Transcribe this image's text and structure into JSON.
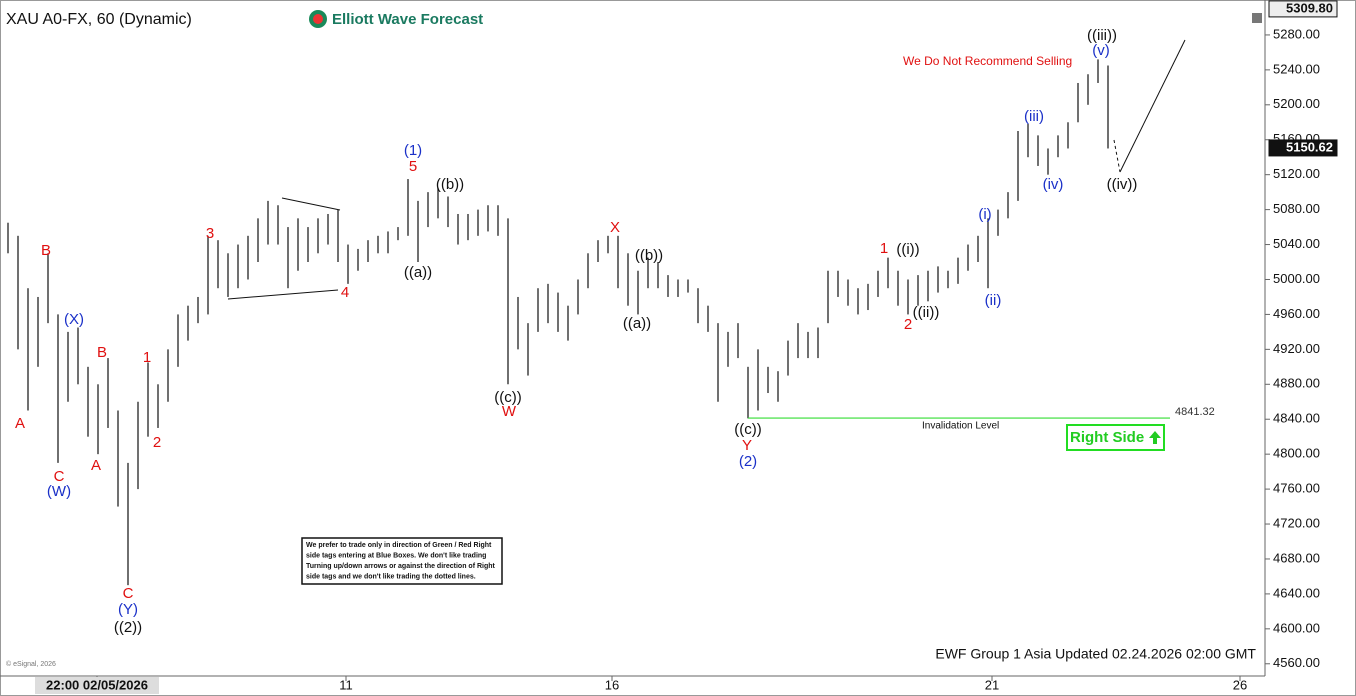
{
  "chart_data": {
    "type": "ohlc",
    "title": "XAU A0-FX, 60 (Dynamic)",
    "x": [
      0,
      1,
      2,
      3,
      4,
      5,
      6,
      7,
      8,
      9,
      10,
      11,
      12,
      13,
      14,
      15,
      16,
      17,
      18,
      19,
      20,
      21,
      22,
      23,
      24,
      25,
      26,
      27,
      28,
      29,
      30,
      31,
      32,
      33,
      34,
      35,
      36,
      37,
      38,
      39,
      40,
      41,
      42,
      43,
      44,
      45,
      46,
      47,
      48,
      49,
      50,
      51,
      52,
      53,
      54,
      55,
      56,
      57,
      58,
      59,
      60,
      61,
      62,
      63,
      64,
      65,
      66,
      67,
      68,
      69,
      70,
      71,
      72,
      73,
      74,
      75,
      76,
      77,
      78,
      79,
      80,
      81,
      82,
      83,
      84,
      85,
      86,
      87,
      88,
      89,
      90,
      91,
      92,
      93,
      94,
      95,
      96,
      97,
      98,
      99,
      100,
      101,
      102,
      103,
      104,
      105,
      106,
      107,
      108,
      109,
      110
    ],
    "high": [
      5065,
      5050,
      4990,
      4980,
      5030,
      4960,
      4940,
      4945,
      4900,
      4880,
      4910,
      4850,
      4790,
      4860,
      4905,
      4880,
      4920,
      4960,
      4970,
      4980,
      5050,
      5045,
      5030,
      5040,
      5050,
      5070,
      5090,
      5085,
      5060,
      5070,
      5060,
      5070,
      5075,
      5080,
      5040,
      5035,
      5045,
      5050,
      5055,
      5060,
      5115,
      5090,
      5100,
      5105,
      5095,
      5075,
      5075,
      5080,
      5085,
      5085,
      5070,
      4980,
      4950,
      4990,
      4995,
      4985,
      4970,
      5000,
      5030,
      5045,
      5050,
      5050,
      5030,
      5010,
      5025,
      5020,
      5005,
      5000,
      5000,
      4990,
      4970,
      4950,
      4940,
      4950,
      4900,
      4920,
      4900,
      4895,
      4930,
      4950,
      4940,
      4945,
      5010,
      5010,
      5000,
      4990,
      4995,
      5010,
      5025,
      5010,
      5000,
      5005,
      5010,
      5015,
      5010,
      5025,
      5040,
      5050,
      5070,
      5080,
      5100,
      5170,
      5178,
      5165,
      5150,
      5165,
      5180,
      5225,
      5235,
      5252,
      5245
    ],
    "low": [
      5030,
      4920,
      4850,
      4900,
      4950,
      4790,
      4860,
      4880,
      4820,
      4800,
      4830,
      4740,
      4650,
      4760,
      4820,
      4830,
      4860,
      4900,
      4930,
      4950,
      4960,
      4990,
      4980,
      4990,
      5000,
      5020,
      5040,
      5040,
      4990,
      5010,
      5020,
      5030,
      5040,
      5020,
      4995,
      5010,
      5020,
      5030,
      5030,
      5045,
      5050,
      5020,
      5060,
      5070,
      5060,
      5040,
      5045,
      5050,
      5055,
      5050,
      4880,
      4920,
      4890,
      4940,
      4950,
      4940,
      4930,
      4960,
      4990,
      5020,
      5030,
      4990,
      4970,
      4960,
      4990,
      4990,
      4980,
      4980,
      4985,
      4950,
      4940,
      4860,
      4900,
      4910,
      4841,
      4850,
      4870,
      4860,
      4890,
      4910,
      4910,
      4910,
      4950,
      4980,
      4970,
      4960,
      4965,
      4980,
      4990,
      4970,
      4960,
      4970,
      4975,
      4985,
      4990,
      4995,
      5010,
      5020,
      4990,
      5050,
      5070,
      5090,
      5140,
      5130,
      5120,
      5140,
      5150,
      5180,
      5200,
      5225,
      5150
    ],
    "color": "#222222",
    "xlim": [
      -0.8,
      125.7
    ],
    "xticks": [
      {
        "value": 8.9,
        "label": "22:00 02/05/2026"
      },
      {
        "value": 33.8,
        "label": "11"
      },
      {
        "value": 60.4,
        "label": "16"
      },
      {
        "value": 98.4,
        "label": "21"
      },
      {
        "value": 123.2,
        "label": "26"
      }
    ],
    "ylim": [
      4546,
      5320
    ],
    "yticks": [
      {
        "value": 4560,
        "label": "4560.00"
      },
      {
        "value": 4600,
        "label": "4600.00"
      },
      {
        "value": 4640,
        "label": "4640.00"
      },
      {
        "value": 4680,
        "label": "4680.00"
      },
      {
        "value": 4720,
        "label": "4720.00"
      },
      {
        "value": 4760,
        "label": "4760.00"
      },
      {
        "value": 4800,
        "label": "4800.00"
      },
      {
        "value": 4840,
        "label": "4840.00"
      },
      {
        "value": 4880,
        "label": "4880.00"
      },
      {
        "value": 4920,
        "label": "4920.00"
      },
      {
        "value": 4960,
        "label": "4960.00"
      },
      {
        "value": 5000,
        "label": "5000.00"
      },
      {
        "value": 5040,
        "label": "5040.00"
      },
      {
        "value": 5080,
        "label": "5080.00"
      },
      {
        "value": 5120,
        "label": "5120.00"
      },
      {
        "value": 5160,
        "label": "5160.00"
      },
      {
        "value": 5200,
        "label": "5200.00"
      },
      {
        "value": 5240,
        "label": "5240.00"
      },
      {
        "value": 5280,
        "label": "5280.00"
      }
    ],
    "price_markers": [
      {
        "value": 5309.8,
        "label": "5309.80"
      },
      {
        "value": 5150.62,
        "label": "5150.62"
      }
    ],
    "invalidation": {
      "value": 4841.32,
      "label": "Invalidation Level",
      "color": "#33dd33"
    },
    "annotations": [
      {
        "text": "A",
        "color": "#e01010"
      },
      {
        "text": "B",
        "color": "#e01010"
      },
      {
        "text": "(X)",
        "color": "#1a30c8"
      },
      {
        "text": "C",
        "color": "#e01010"
      },
      {
        "text": "(W)",
        "color": "#1a30c8"
      },
      {
        "text": "B",
        "color": "#e01010"
      },
      {
        "text": "A",
        "color": "#e01010"
      },
      {
        "text": "1",
        "color": "#e01010"
      },
      {
        "text": "2",
        "color": "#e01010"
      },
      {
        "text": "C",
        "color": "#e01010"
      },
      {
        "text": "(Y)",
        "color": "#1a30c8"
      },
      {
        "text": "((2))",
        "color": "#111111"
      },
      {
        "text": "3",
        "color": "#e01010"
      },
      {
        "text": "4",
        "color": "#e01010"
      },
      {
        "text": "5",
        "color": "#e01010"
      },
      {
        "text": "(1)",
        "color": "#1a30c8"
      },
      {
        "text": "((a))",
        "color": "#111111"
      },
      {
        "text": "((b))",
        "color": "#111111"
      },
      {
        "text": "((c))",
        "color": "#111111"
      },
      {
        "text": "W",
        "color": "#e01010"
      },
      {
        "text": "X",
        "color": "#e01010"
      },
      {
        "text": "((b))",
        "color": "#111111"
      },
      {
        "text": "((a))",
        "color": "#111111"
      },
      {
        "text": "((c))",
        "color": "#111111"
      },
      {
        "text": "Y",
        "color": "#e01010"
      },
      {
        "text": "(2)",
        "color": "#1a30c8"
      },
      {
        "text": "1",
        "color": "#e01010"
      },
      {
        "text": "((i))",
        "color": "#111111"
      },
      {
        "text": "2",
        "color": "#e01010"
      },
      {
        "text": "((ii))",
        "color": "#111111"
      },
      {
        "text": "(i)",
        "color": "#1a30c8"
      },
      {
        "text": "(ii)",
        "color": "#1a30c8"
      },
      {
        "text": "(iii)",
        "color": "#1a30c8"
      },
      {
        "text": "(iv)",
        "color": "#1a30c8"
      },
      {
        "text": "(v)",
        "color": "#1a30c8"
      },
      {
        "text": "((iii))",
        "color": "#111111"
      },
      {
        "text": "((iv))",
        "color": "#111111"
      }
    ]
  },
  "header": {
    "logo": "Elliott Wave Forecast",
    "warning": "We Do Not Recommend Selling"
  },
  "badge": "Right Side",
  "footer": "EWF Group 1 Asia Updated 02.24.2026 02:00 GMT",
  "note": [
    "We prefer to trade only in direction of Green / Red Right",
    "side tags entering at Blue Boxes. We don't like trading",
    "Turning up/down arrows or against the direction of Right",
    "side tags and we don't like trading the dotted lines."
  ],
  "copyright": "© eSignal, 2026"
}
